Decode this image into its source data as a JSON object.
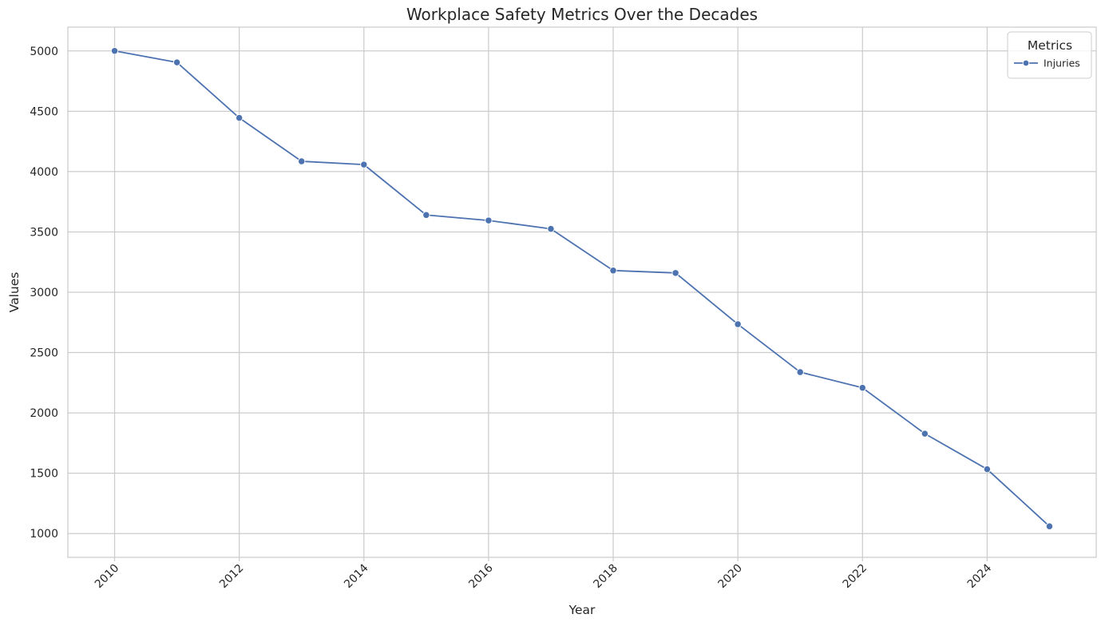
{
  "chart_data": {
    "type": "line",
    "title": "Workplace Safety Metrics Over the Decades",
    "xlabel": "Year",
    "ylabel": "Values",
    "x": [
      2010,
      2011,
      2012,
      2013,
      2014,
      2015,
      2016,
      2017,
      2018,
      2019,
      2020,
      2021,
      2022,
      2023,
      2024,
      2025
    ],
    "series": [
      {
        "name": "Injuries",
        "color": "#4c72b0",
        "values": [
          5000,
          4905,
          4445,
          4085,
          4058,
          3640,
          3595,
          3525,
          3180,
          3160,
          2735,
          2338,
          2208,
          1828,
          1533,
          1060
        ]
      }
    ],
    "x_ticks": [
      "2010",
      "2012",
      "2014",
      "2016",
      "2018",
      "2020",
      "2022",
      "2024"
    ],
    "y_ticks": [
      "1000",
      "1500",
      "2000",
      "2500",
      "3000",
      "3500",
      "4000",
      "4500",
      "5000"
    ],
    "xlim": [
      2009.25,
      2025.75
    ],
    "ylim": [
      803,
      5197
    ],
    "grid": true,
    "legend": {
      "title": "Metrics",
      "placement": "top-right"
    },
    "x_tick_rotation": 45
  }
}
